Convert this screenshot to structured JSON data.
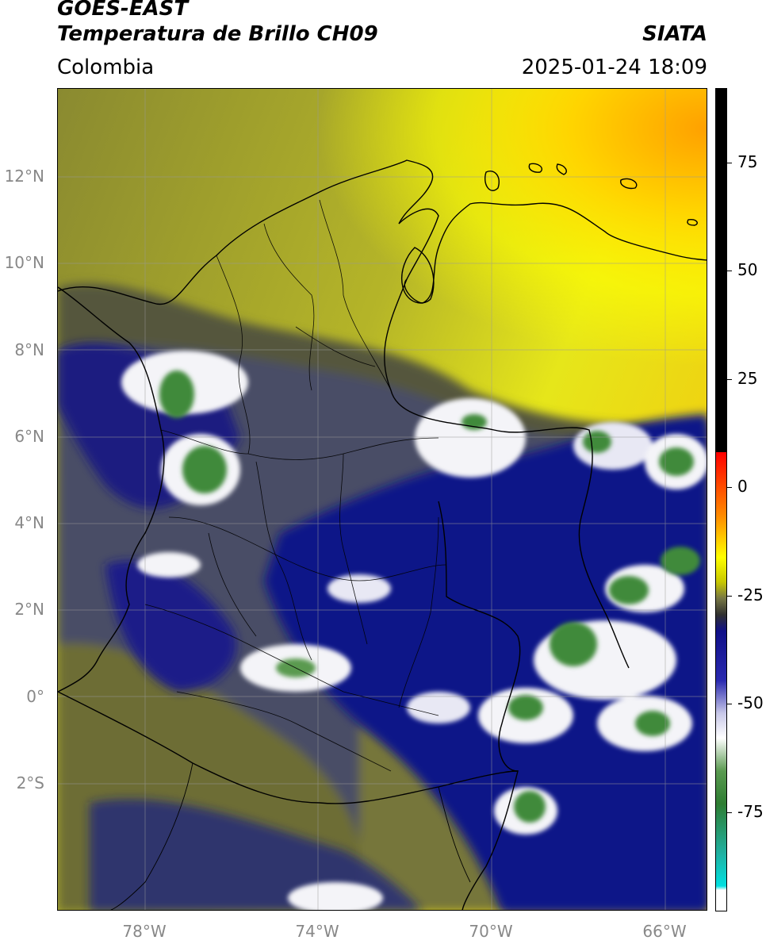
{
  "header": {
    "satellite": "GOES-EAST",
    "product": "Temperatura de Brillo CH09",
    "organization": "SIATA",
    "region": "Colombia",
    "timestamp": "2025-01-24 18:09"
  },
  "map": {
    "lon_range": [
      -80,
      -65
    ],
    "lat_range": [
      -4.8,
      14.2
    ],
    "lat_ticks": [
      "12°N",
      "10°N",
      "8°N",
      "6°N",
      "4°N",
      "2°N",
      "0°",
      "2°S"
    ],
    "lon_ticks": [
      "78°W",
      "74°W",
      "70°W",
      "66°W"
    ],
    "colors": {
      "dry_yellow": "#f5f000",
      "orange": "#ffae00",
      "olive": "#8c8c2c",
      "dark_olive": "#5f5f3a",
      "slate": "#4a4d66",
      "navy": "#0a0f88",
      "white": "#f4f4f8",
      "green": "#3f8a3a"
    }
  },
  "colorbar": {
    "ticks": [
      "75",
      "50",
      "25",
      "0",
      "-25",
      "-50",
      "-75"
    ],
    "tick_values": [
      75,
      50,
      25,
      0,
      -25,
      -50,
      -75
    ],
    "range": [
      -95,
      90
    ]
  }
}
